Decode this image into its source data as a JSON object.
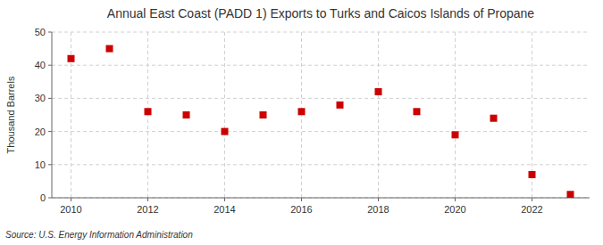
{
  "chart_data": {
    "type": "scatter",
    "title": "Annual East Coast (PADD 1) Exports to Turks and Caicos Islands of Propane",
    "ylabel": "Thousand Barrels",
    "source": "Source: U.S. Energy Information Administration",
    "x": [
      2010,
      2011,
      2012,
      2013,
      2014,
      2015,
      2016,
      2017,
      2018,
      2019,
      2020,
      2021,
      2022,
      2023
    ],
    "values": [
      42,
      45,
      26,
      25,
      20,
      25,
      26,
      28,
      32,
      26,
      19,
      24,
      7,
      1
    ],
    "color": "#cc0000",
    "marker": "square",
    "grid": true,
    "xlim": [
      2009.5,
      2023.5
    ],
    "xticks": [
      2010,
      2012,
      2014,
      2016,
      2018,
      2020,
      2022
    ],
    "ylim": [
      0,
      50
    ],
    "yticks": [
      0,
      10,
      20,
      30,
      40,
      50
    ]
  }
}
